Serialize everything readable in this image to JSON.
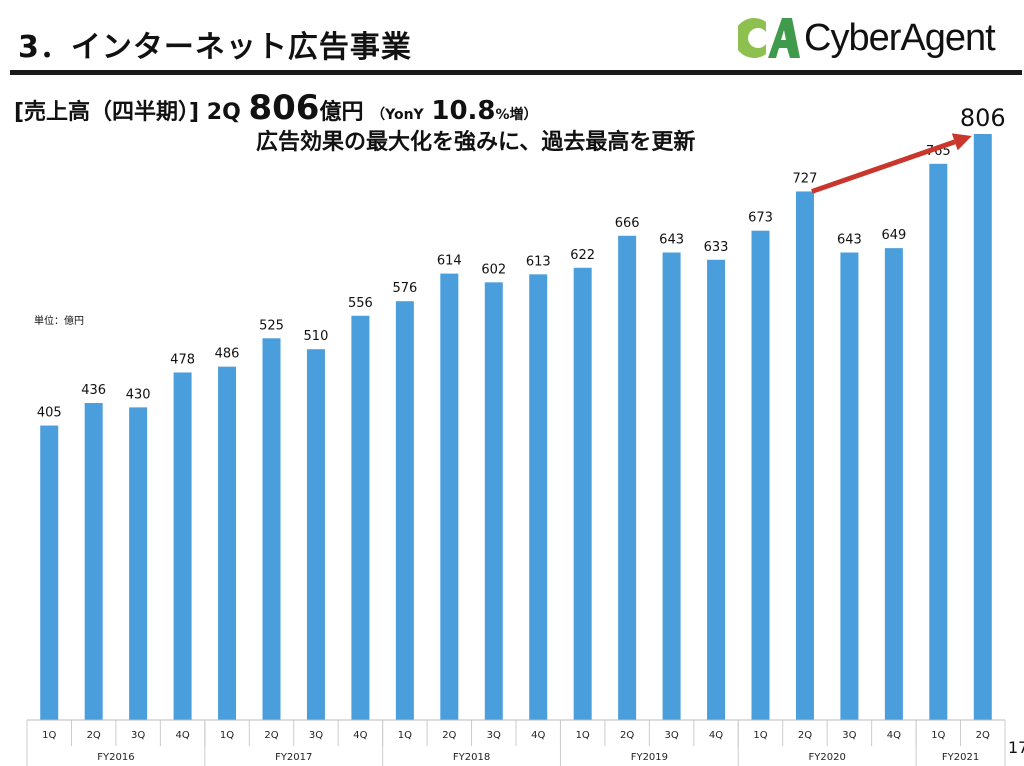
{
  "slide": {
    "title": "3．インターネット広告事業",
    "logo_text": "CyberAgent",
    "logo_mark": "CA",
    "headline_prefix": "[売上高（四半期）] 2Q",
    "headline_value": "806",
    "headline_unit": "億円",
    "headline_yoy_open": "（YonY",
    "headline_yoy_value": "10.8",
    "headline_yoy_suffix": "%増）",
    "subheadline": "広告効果の最大化を強みに、過去最高を更新",
    "unit_label": "単位：億円",
    "page_number": "17",
    "highlight_value": "806"
  },
  "colors": {
    "bar": "#4a9edb",
    "arrow": "#c9372c",
    "logo_light": "#8dc04f",
    "logo_dark": "#3f9a4b"
  },
  "chart_data": {
    "type": "bar",
    "unit": "億円",
    "categories": [
      "1Q",
      "2Q",
      "3Q",
      "4Q",
      "1Q",
      "2Q",
      "3Q",
      "4Q",
      "1Q",
      "2Q",
      "3Q",
      "4Q",
      "1Q",
      "2Q",
      "3Q",
      "4Q",
      "1Q",
      "2Q",
      "3Q",
      "4Q",
      "1Q",
      "2Q"
    ],
    "groups": [
      {
        "label": "FY2016",
        "count": 4
      },
      {
        "label": "FY2017",
        "count": 4
      },
      {
        "label": "FY2018",
        "count": 4
      },
      {
        "label": "FY2019",
        "count": 4
      },
      {
        "label": "FY2020",
        "count": 4
      },
      {
        "label": "FY2021",
        "count": 2
      }
    ],
    "values": [
      405,
      436,
      430,
      478,
      486,
      525,
      510,
      556,
      576,
      614,
      602,
      613,
      622,
      666,
      643,
      633,
      673,
      727,
      643,
      649,
      765,
      806
    ],
    "annotation": {
      "type": "arrow",
      "from": "FY2020 2Q",
      "to": "FY2021 2Q"
    },
    "ylim": [
      0,
      989
    ],
    "grid": false
  }
}
